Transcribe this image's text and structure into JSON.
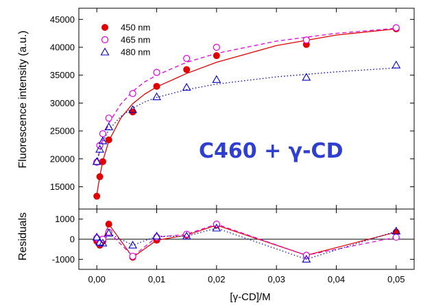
{
  "chart_data": [
    {
      "type": "scatter",
      "panel": "main",
      "ylabel": "Fluorescence intensity (a.u.)",
      "xlim": [
        -0.003,
        0.053
      ],
      "ylim": [
        11000,
        47000
      ],
      "yticks": [
        15000,
        20000,
        25000,
        30000,
        35000,
        40000,
        45000
      ],
      "yticklabels": [
        "15000",
        "20000",
        "25000",
        "30000",
        "35000",
        "40000",
        "45000"
      ],
      "annotation": "C460 + γ-CD",
      "legend_position": "top-left",
      "series": [
        {
          "name": "450 nm",
          "color": "#e00000",
          "marker": "filled-circle",
          "fit_style": "solid",
          "x": [
            0.0,
            0.0005,
            0.001,
            0.002,
            0.006,
            0.01,
            0.015,
            0.02,
            0.035,
            0.05
          ],
          "y": [
            13300,
            16800,
            19500,
            23400,
            28400,
            33000,
            36000,
            38500,
            40500,
            43300
          ],
          "fit": {
            "x": [
              0.0,
              0.0005,
              0.001,
              0.002,
              0.004,
              0.006,
              0.008,
              0.01,
              0.015,
              0.02,
              0.03,
              0.04,
              0.05
            ],
            "y": [
              13600,
              16900,
              19600,
              23200,
              27300,
              29900,
              31600,
              32900,
              35300,
              37300,
              40300,
              42200,
              43300
            ]
          }
        },
        {
          "name": "465 nm",
          "color": "#e000e0",
          "marker": "open-circle",
          "fit_style": "dashed",
          "x": [
            0.0,
            0.0005,
            0.001,
            0.002,
            0.006,
            0.01,
            0.015,
            0.02,
            0.035,
            0.05
          ],
          "y": [
            19400,
            22400,
            24500,
            27300,
            31700,
            35500,
            38000,
            40000,
            41300,
            43500
          ],
          "fit": {
            "x": [
              0.0,
              0.0005,
              0.001,
              0.002,
              0.004,
              0.006,
              0.008,
              0.01,
              0.015,
              0.02,
              0.03,
              0.04,
              0.05
            ],
            "y": [
              19300,
              21600,
              23600,
              26400,
              29800,
              32100,
              33800,
              35000,
              37300,
              38900,
              41100,
              42500,
              43400
            ]
          }
        },
        {
          "name": "480 nm",
          "color": "#0000c0",
          "marker": "open-triangle",
          "fit_style": "dotted",
          "x": [
            0.0,
            0.0005,
            0.001,
            0.002,
            0.006,
            0.01,
            0.015,
            0.02,
            0.035,
            0.05
          ],
          "y": [
            19500,
            21700,
            23200,
            25700,
            28800,
            31100,
            32800,
            34200,
            34600,
            36800
          ],
          "fit": {
            "x": [
              0.0,
              0.0005,
              0.001,
              0.002,
              0.004,
              0.006,
              0.008,
              0.01,
              0.015,
              0.02,
              0.03,
              0.04,
              0.05
            ],
            "y": [
              19500,
              21400,
              23000,
              25200,
              27600,
              29100,
              30200,
              31000,
              32400,
              33400,
              34700,
              35600,
              36300
            ]
          }
        }
      ]
    },
    {
      "type": "line",
      "panel": "residuals",
      "ylabel": "Residuals",
      "xlabel": "[γ-CD]/M",
      "xlim": [
        -0.003,
        0.053
      ],
      "ylim": [
        -1500,
        1500
      ],
      "yticks": [
        -1000,
        0,
        1000
      ],
      "yticklabels": [
        "-1000",
        "0",
        "1000"
      ],
      "xticks": [
        0.0,
        0.01,
        0.02,
        0.03,
        0.04,
        0.05
      ],
      "xticklabels": [
        "0,00",
        "0,01",
        "0,02",
        "0,03",
        "0,04",
        "0,05"
      ],
      "zero_line": true,
      "series": [
        {
          "name": "450 nm",
          "color": "#e00000",
          "marker": "filled-circle",
          "line_style": "solid",
          "x": [
            0.0,
            0.0005,
            0.001,
            0.002,
            0.006,
            0.01,
            0.015,
            0.02,
            0.035,
            0.05
          ],
          "y": [
            -100,
            -300,
            -100,
            750,
            -900,
            -50,
            200,
            700,
            -800,
            350
          ]
        },
        {
          "name": "465 nm",
          "color": "#e000e0",
          "marker": "open-circle",
          "line_style": "dashed",
          "x": [
            0.0,
            0.0005,
            0.001,
            0.002,
            0.006,
            0.01,
            0.015,
            0.02,
            0.035,
            0.05
          ],
          "y": [
            50,
            -200,
            0,
            350,
            -850,
            100,
            250,
            750,
            -800,
            100
          ]
        },
        {
          "name": "480 nm",
          "color": "#0000c0",
          "marker": "open-triangle",
          "line_style": "dotted",
          "x": [
            0.0,
            0.0005,
            0.001,
            0.002,
            0.006,
            0.01,
            0.015,
            0.02,
            0.035,
            0.05
          ],
          "y": [
            100,
            -150,
            -200,
            300,
            -300,
            150,
            150,
            550,
            -1000,
            400
          ]
        }
      ]
    }
  ]
}
